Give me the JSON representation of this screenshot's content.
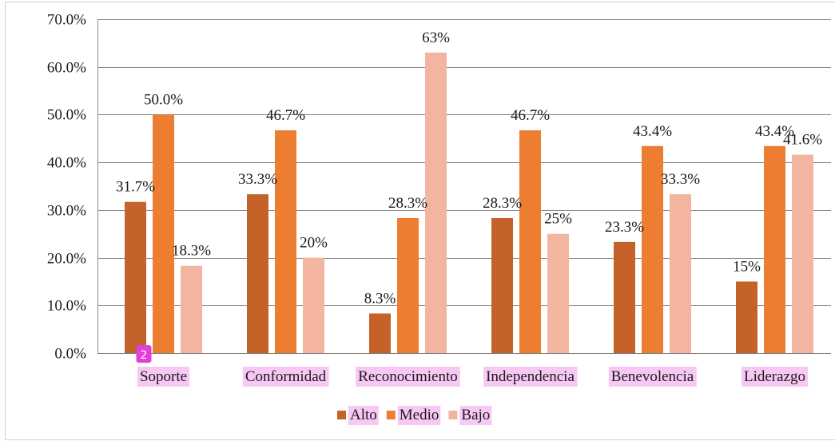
{
  "chart_data": {
    "type": "bar",
    "categories": [
      "Soporte",
      "Conformidad",
      "Reconocimiento",
      "Independencia",
      "Benevolencia",
      "Liderazgo"
    ],
    "series": [
      {
        "name": "Alto",
        "color": "#c4622a",
        "values": [
          31.7,
          33.3,
          8.3,
          28.3,
          23.3,
          15
        ],
        "labels": [
          "31.7%",
          "33.3%",
          "8.3%",
          "28.3%",
          "23.3%",
          "15%"
        ]
      },
      {
        "name": "Medio",
        "color": "#ed7d31",
        "values": [
          50.0,
          46.7,
          28.3,
          46.7,
          43.4,
          43.4
        ],
        "labels": [
          "50.0%",
          "46.7%",
          "28.3%",
          "46.7%",
          "43.4%",
          "43.4%"
        ]
      },
      {
        "name": "Bajo",
        "color": "#f4b5a0",
        "values": [
          18.3,
          20,
          63,
          25,
          33.3,
          41.6
        ],
        "labels": [
          "18.3%",
          "20%",
          "63%",
          "25%",
          "33.3%",
          "41.6%"
        ]
      }
    ],
    "y_ticks": [
      "0.0%",
      "10.0%",
      "20.0%",
      "30.0%",
      "40.0%",
      "50.0%",
      "60.0%",
      "70.0%"
    ],
    "ylim": [
      0,
      70
    ],
    "grid": true,
    "legend_position": "bottom",
    "title": "",
    "xlabel": "",
    "ylabel": ""
  },
  "overlay": {
    "badge_text": "2",
    "badge_color": "#e040d8",
    "highlight_color": "#f7c8f3"
  }
}
